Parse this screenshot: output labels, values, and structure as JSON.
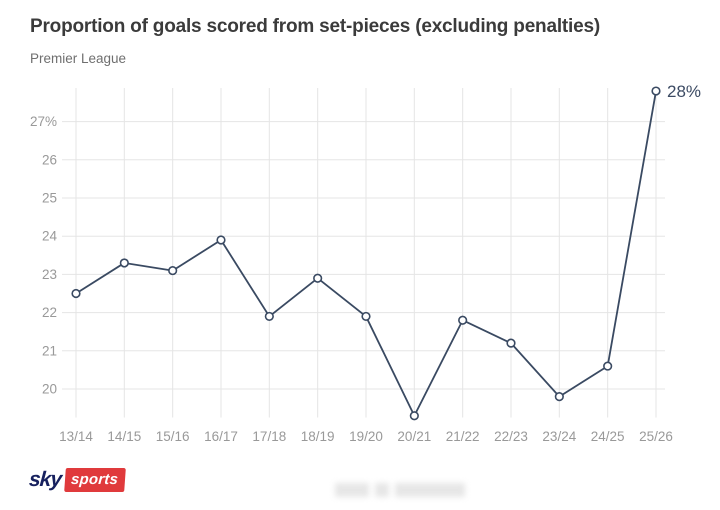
{
  "header": {
    "title": "Proportion of goals scored from set-pieces (excluding penalties)",
    "subtitle": "Premier League"
  },
  "chart_data": {
    "type": "line",
    "title": "Proportion of goals scored from set-pieces (excluding penalties)",
    "subtitle": "Premier League",
    "categories": [
      "13/14",
      "14/15",
      "15/16",
      "16/17",
      "17/18",
      "18/19",
      "19/20",
      "20/21",
      "21/22",
      "22/23",
      "23/24",
      "24/25",
      "25/26"
    ],
    "values": [
      22.5,
      23.3,
      23.1,
      23.9,
      21.9,
      22.9,
      21.9,
      19.3,
      21.8,
      21.2,
      19.8,
      20.6,
      27.8
    ],
    "last_point_label": "28%",
    "yticks": [
      20,
      21,
      22,
      23,
      24,
      25,
      26,
      27
    ],
    "ytick_top_label": "27%",
    "ylim": [
      19.25,
      27.9
    ],
    "grid": true,
    "legend": "none",
    "colors": {
      "line": "#3a4a62",
      "point_fill": "#ffffff",
      "grid": "#e5e5e5",
      "tick_label": "#999999",
      "annotation": "#3b4a63"
    }
  },
  "footer": {
    "logo": {
      "sky": "sky",
      "sports": "sports"
    }
  }
}
